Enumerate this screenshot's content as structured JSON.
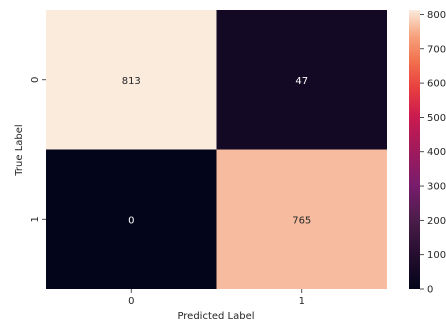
{
  "chart_data": {
    "type": "heatmap",
    "title": "",
    "xlabel": "Predicted Label",
    "ylabel": "True Label",
    "x_categories": [
      "0",
      "1"
    ],
    "y_categories": [
      "0",
      "1"
    ],
    "values": [
      [
        813,
        47
      ],
      [
        0,
        765
      ]
    ],
    "colormap": "rocket",
    "colorbar": {
      "min": 0,
      "max": 813,
      "ticks": [
        0,
        100,
        200,
        300,
        400,
        500,
        600,
        700,
        800
      ]
    },
    "annotation_colors": {
      "on_light": "#262626",
      "on_dark": "#ffffff"
    }
  }
}
